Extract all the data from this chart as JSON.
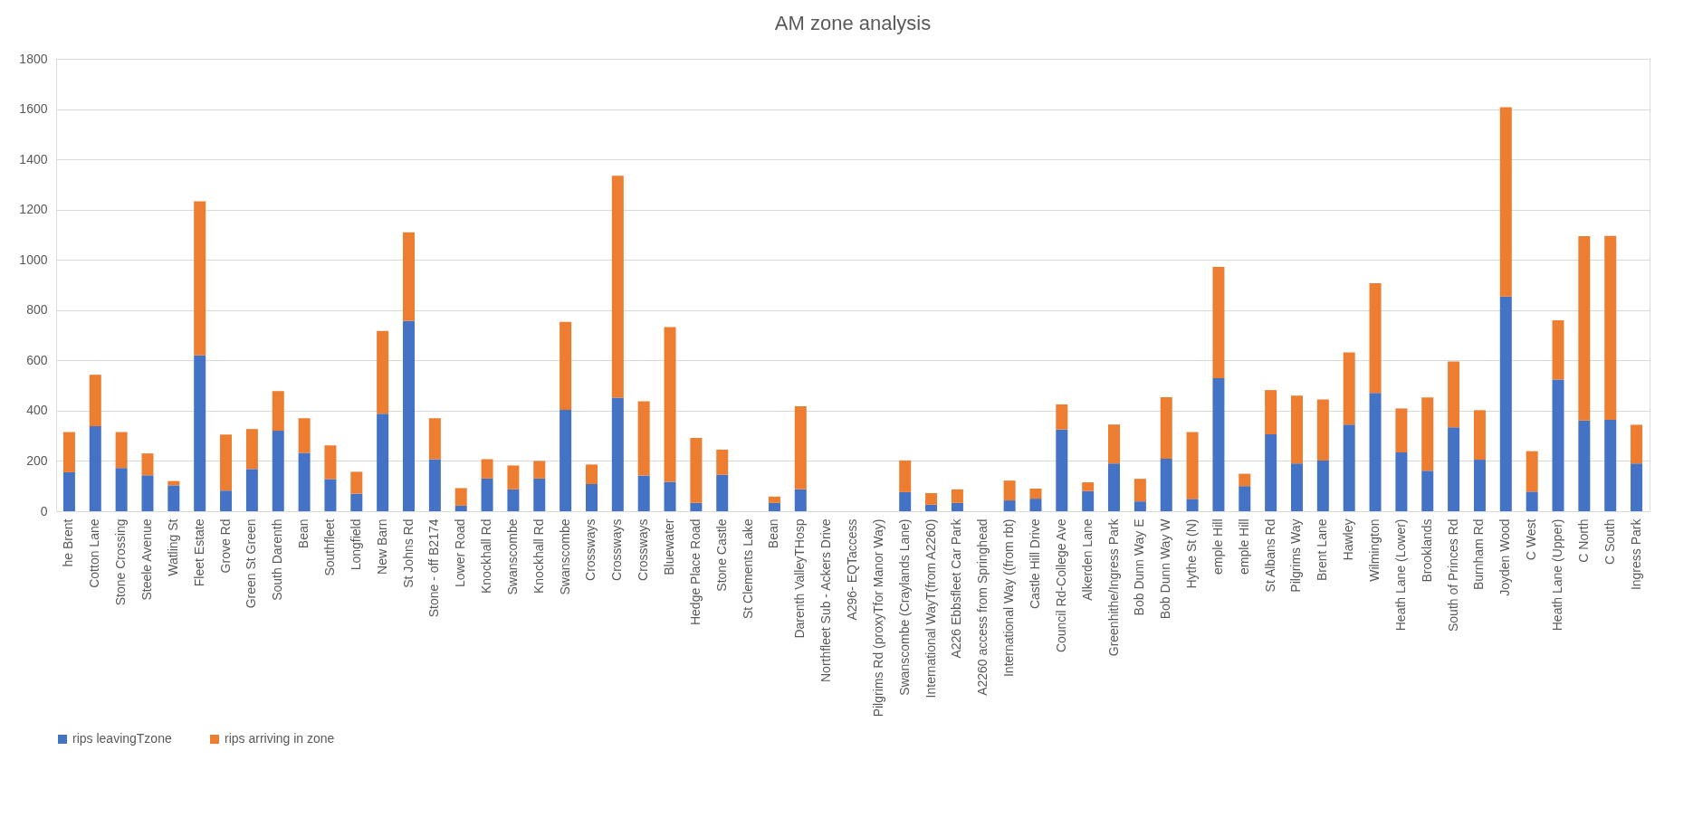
{
  "chart_data": {
    "type": "bar",
    "title": "AM zone analysis",
    "stacked": true,
    "categories": [
      "he Brent",
      "Cotton Lane",
      "Stone Crossing",
      "Steele Avenue",
      "Watling St",
      "Fleet Estate",
      "Grove Rd",
      "Green St Green",
      "South Darenth",
      "Bean",
      "Southfleet",
      "Longfield",
      "New Barn",
      "St Johns Rd",
      "Stone - off B2174",
      "Lower Road",
      "Knockhall Rd",
      "Swanscombe",
      "Knockhall Rd",
      "Swanscombe",
      "Crossways",
      "Crossways",
      "Crossways",
      "Bluewater",
      "Hedge Place Road",
      "Stone Castle",
      "St Clements Lake",
      "Bean",
      "Darenth ValleyTHosp",
      "Northfleet Sub - Ackers Drive",
      "A296- EQTaccess",
      "Pilgrims Rd (proxyTfor Manor Way)",
      "Swanscombe (Craylands Lane)",
      "International WayT(from A2260)",
      "A226 Ebbsfleet Car Park",
      "A2260 access from Springhead",
      "International Way ((from rbt)",
      "Castle Hill Drive",
      "Council Rd-College Ave",
      "Alkerden Lane",
      "Greenhithe/Ingress Park",
      "Bob Dunn Way E",
      "Bob Dunn Way W",
      "Hythe St (N)",
      "emple Hill",
      "emple Hill",
      "St Albans Rd",
      "Pilgrims Way",
      "Brent Lane",
      "Hawley",
      "Wilmington",
      "Heath Lane (Lower)",
      "Brooklands",
      "South of Princes Rd",
      "Burnham Rd",
      "Joyden Wood",
      "C West",
      "Heath Lane (Upper)",
      "C North",
      "C South",
      "Ingress Park"
    ],
    "series": [
      {
        "name": "rips leavingTzone",
        "color": "#4472c4",
        "values": [
          155,
          338,
          172,
          143,
          103,
          620,
          82,
          168,
          320,
          232,
          128,
          70,
          388,
          757,
          207,
          22,
          130,
          87,
          130,
          403,
          108,
          452,
          142,
          117,
          33,
          145,
          null,
          33,
          87,
          null,
          null,
          null,
          76,
          26,
          33,
          null,
          43,
          50,
          325,
          80,
          190,
          39,
          209,
          49,
          529,
          100,
          306,
          190,
          202,
          345,
          471,
          234,
          161,
          334,
          205,
          854,
          78,
          524,
          361,
          364,
          190
        ]
      },
      {
        "name": "rips arriving in zone",
        "color": "#ed7d31",
        "values": [
          160,
          205,
          143,
          87,
          17,
          613,
          223,
          159,
          158,
          138,
          134,
          87,
          329,
          353,
          163,
          70,
          77,
          95,
          70,
          350,
          78,
          883,
          295,
          616,
          259,
          100,
          null,
          25,
          331,
          null,
          null,
          null,
          126,
          46,
          54,
          null,
          79,
          40,
          100,
          35,
          155,
          90,
          245,
          266,
          443,
          49,
          176,
          270,
          243,
          287,
          436,
          175,
          292,
          262,
          197,
          753,
          161,
          236,
          733,
          731,
          154
        ]
      }
    ],
    "ylim": [
      0,
      1800
    ],
    "yticks": [
      0,
      200,
      400,
      600,
      800,
      1000,
      1200,
      1400,
      1600,
      1800
    ],
    "grid": "y",
    "legend": "bottom"
  }
}
